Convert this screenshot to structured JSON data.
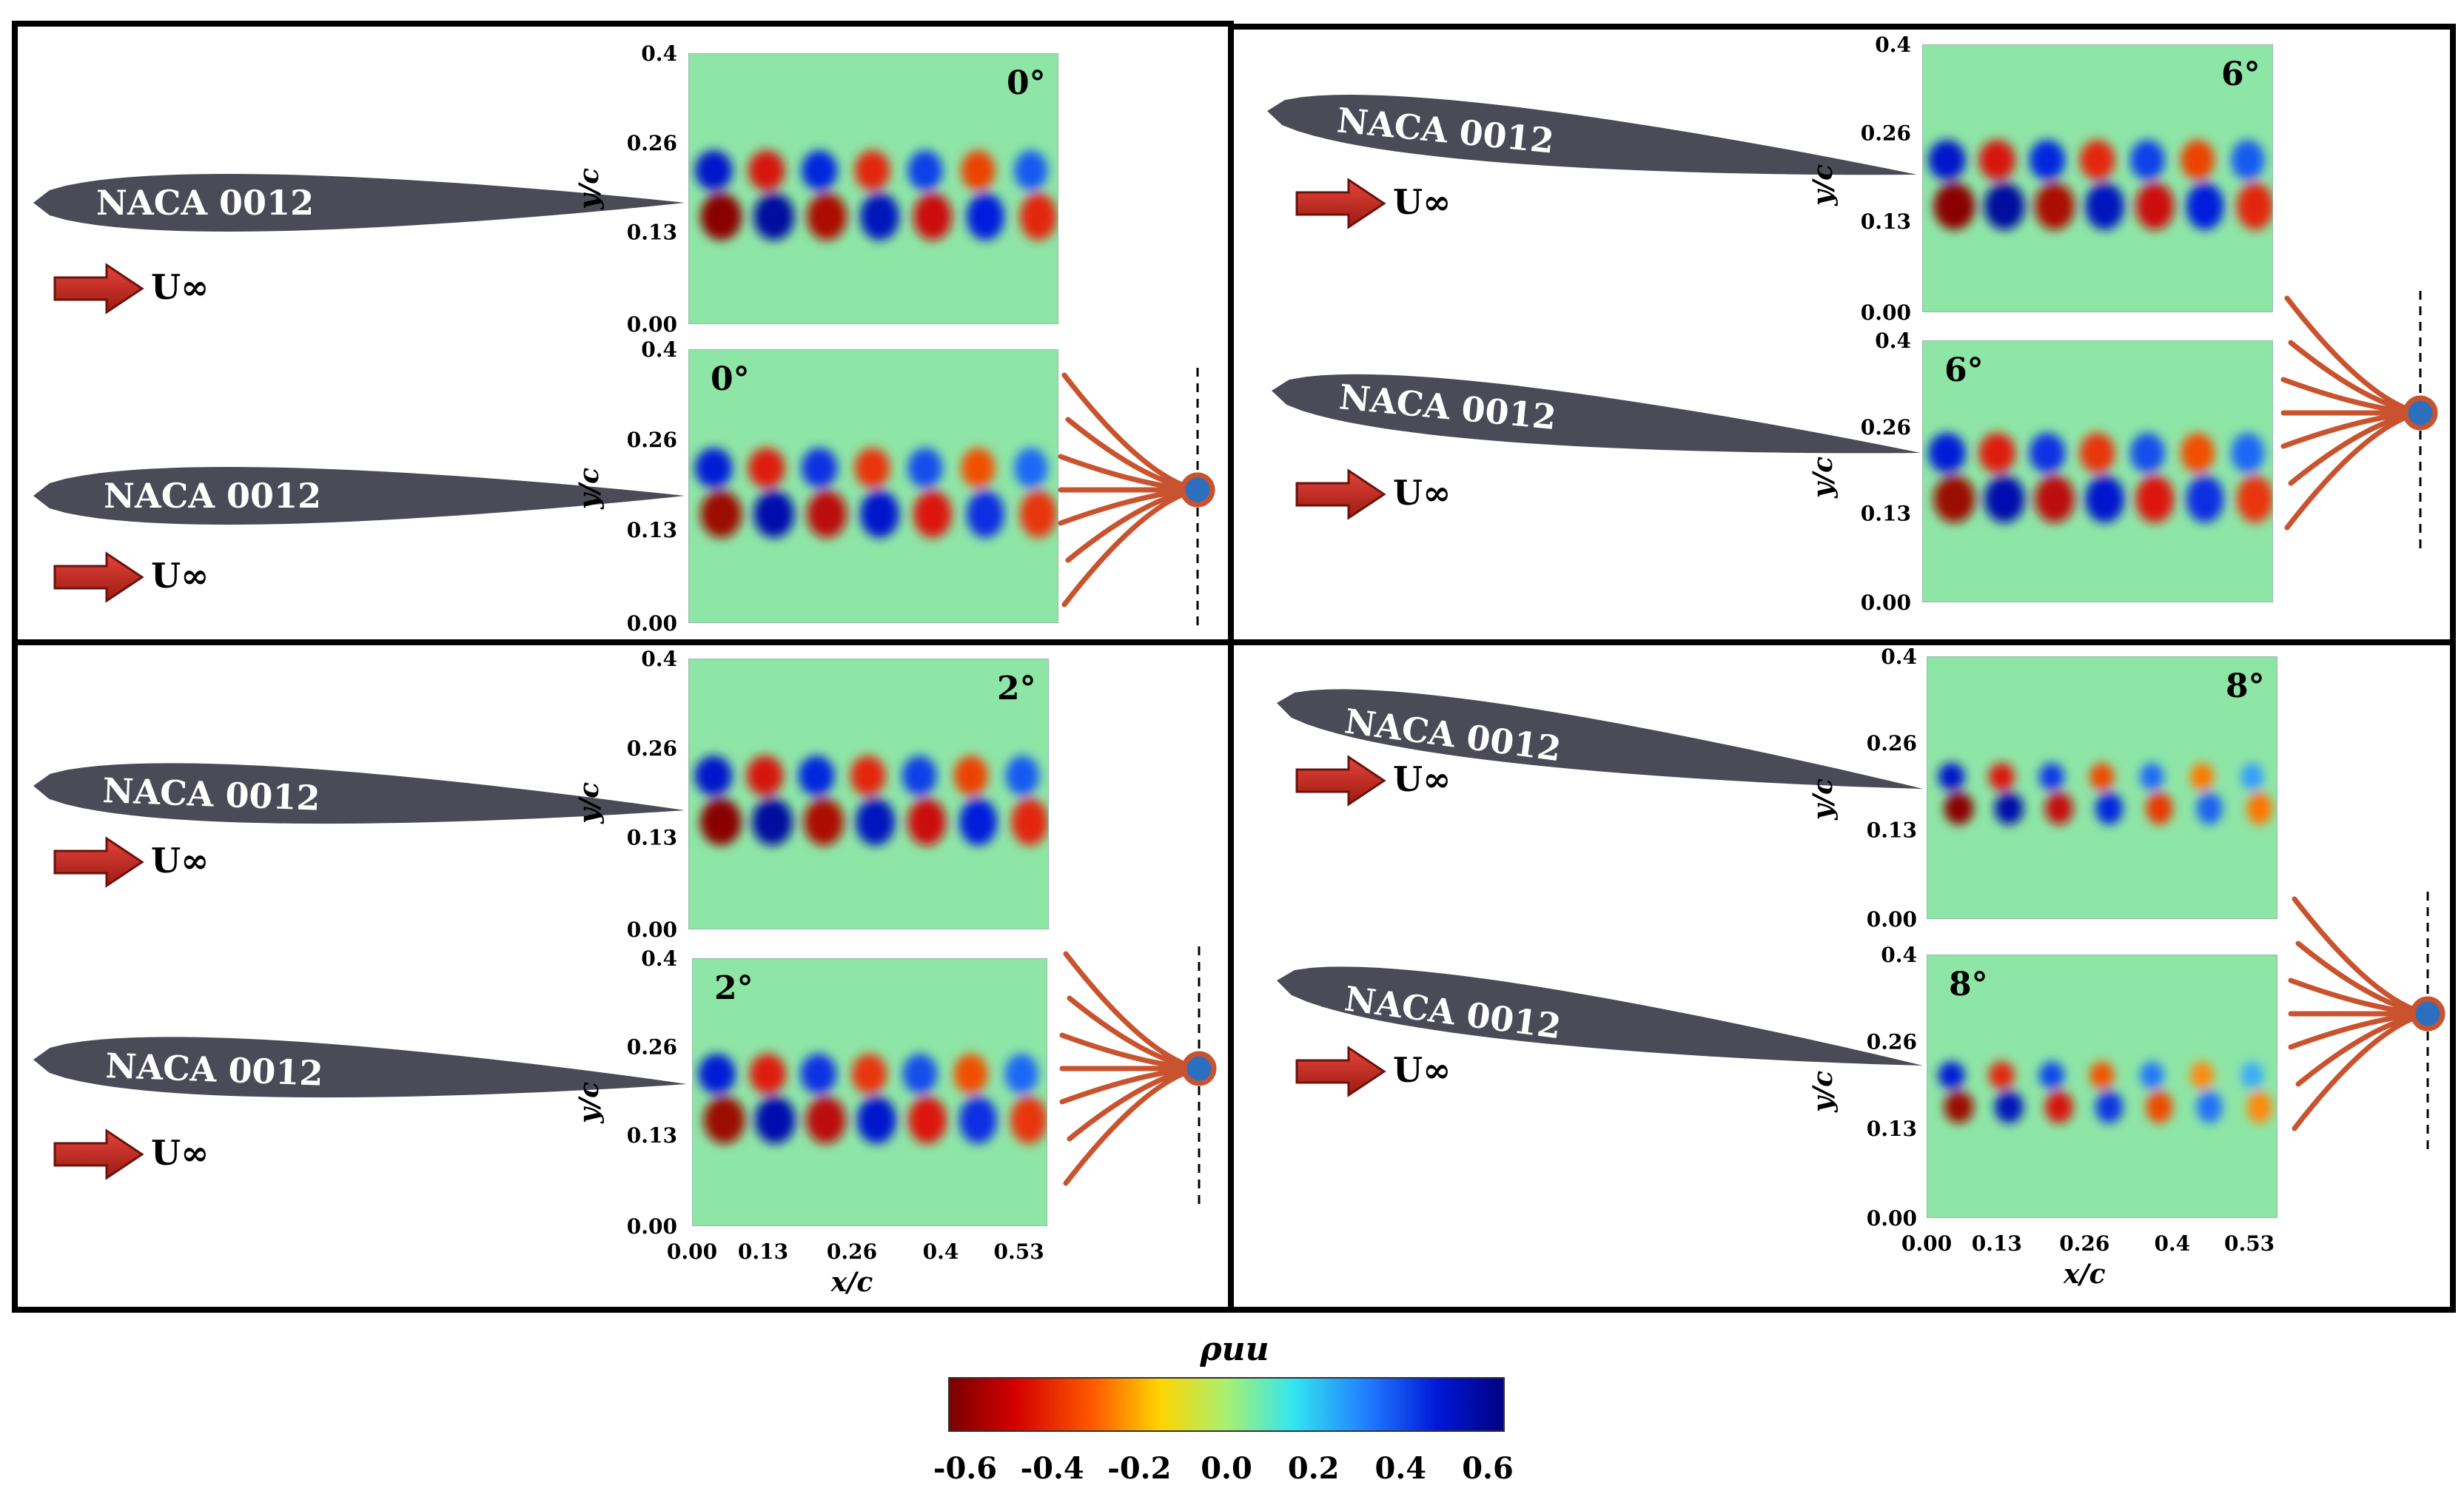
{
  "figure": {
    "airfoil_name": "NACA 0012",
    "freestream_label": "U∞",
    "x_axis_title": "x/c",
    "y_axis_title": "y/c",
    "x_ticks": [
      "0.00",
      "0.13",
      "0.26",
      "0.4",
      "0.53"
    ],
    "y_ticks": [
      "0.4",
      "0.26",
      "0.13",
      "0.00"
    ],
    "colors": {
      "airfoil": "#4a4b57",
      "arrow": "#c0281c",
      "hair": "#c8532e",
      "sensor": "#2d6fbf",
      "background": "#86e6a8"
    }
  },
  "panels": [
    {
      "id": "p0",
      "angle_deg": 0,
      "angle_label": "0°",
      "rows": [
        {
          "angle_label": "0°",
          "has_sensor": false
        },
        {
          "angle_label": "0°",
          "has_sensor": true
        }
      ]
    },
    {
      "id": "p6",
      "angle_deg": 6,
      "angle_label": "6°",
      "rows": [
        {
          "angle_label": "6°",
          "has_sensor": false
        },
        {
          "angle_label": "6°",
          "has_sensor": true
        }
      ]
    },
    {
      "id": "p2",
      "angle_deg": 2,
      "angle_label": "2°",
      "rows": [
        {
          "angle_label": "2°",
          "has_sensor": false
        },
        {
          "angle_label": "2°",
          "has_sensor": true
        }
      ]
    },
    {
      "id": "p8",
      "angle_deg": 8,
      "angle_label": "8°",
      "rows": [
        {
          "angle_label": "8°",
          "has_sensor": false
        },
        {
          "angle_label": "8°",
          "has_sensor": true
        }
      ]
    }
  ],
  "colorbar": {
    "title": "ρuu",
    "ticks": [
      "-0.6",
      "-0.4",
      "-0.2",
      "0.0",
      "0.2",
      "0.4",
      "0.6"
    ],
    "range": [
      -0.6,
      0.6
    ],
    "colormap": "jet"
  }
}
